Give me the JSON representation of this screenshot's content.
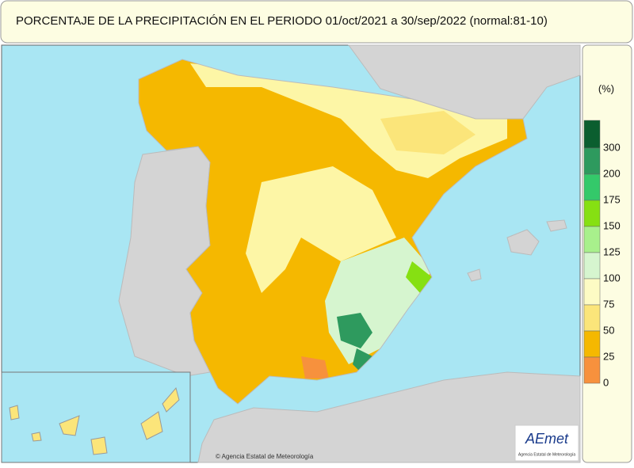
{
  "header": {
    "title": "PORCENTAJE DE LA PRECIPITACIÓN EN EL PERIODO  01/oct/2021 a 30/sep/2022 (normal:81-10)"
  },
  "legend": {
    "unit": "(%)",
    "items": [
      {
        "label": "300",
        "color": "#0b5e2f"
      },
      {
        "label": "200",
        "color": "#2e9a5e"
      },
      {
        "label": "175",
        "color": "#34c96a"
      },
      {
        "label": "150",
        "color": "#86e012"
      },
      {
        "label": "125",
        "color": "#a8f08c"
      },
      {
        "label": "100",
        "color": "#d6f5cf"
      },
      {
        "label": "75",
        "color": "#fdfbc4"
      },
      {
        "label": "50",
        "color": "#fbe57a"
      },
      {
        "label": "25",
        "color": "#f5b800"
      },
      {
        "label": "0",
        "color": "#f7913d"
      }
    ],
    "bottom_color": "#f55a3c"
  },
  "credit": "© Agencia Estatal de Meteorología",
  "logo": {
    "name": "AEmet",
    "subtitle": "Agencia Estatal de Meteorología"
  }
}
